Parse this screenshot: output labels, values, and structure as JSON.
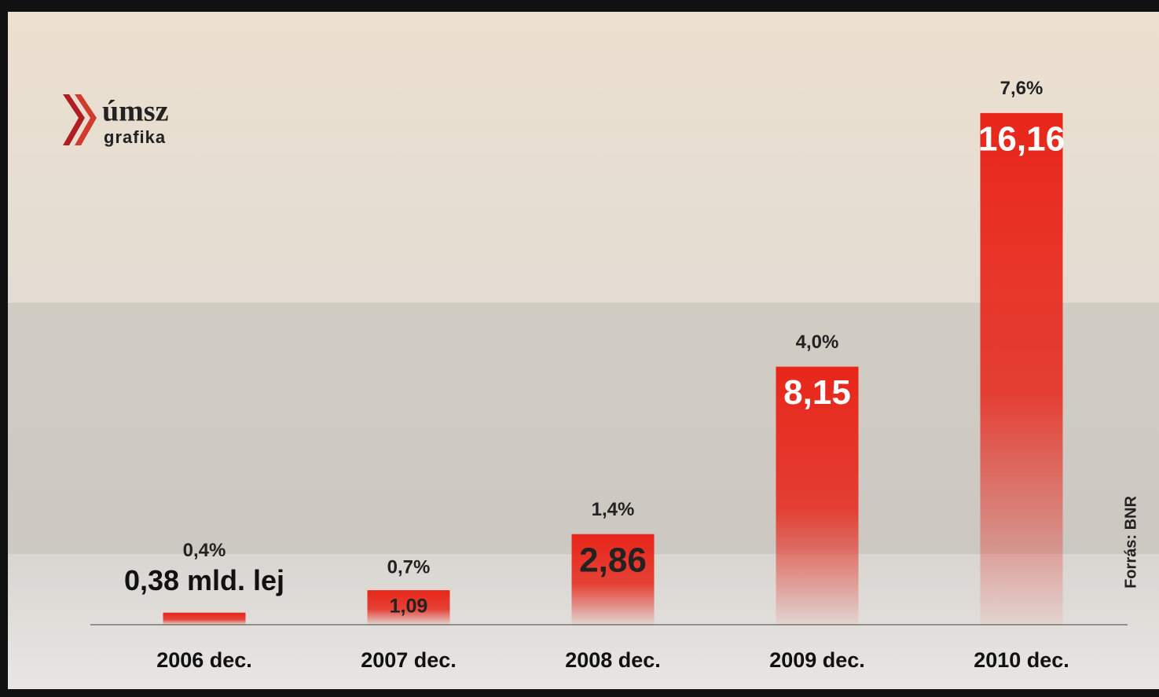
{
  "chart_data": {
    "type": "bar",
    "categories": [
      "2006 dec.",
      "2007 dec.",
      "2008 dec.",
      "2009 dec.",
      "2010 dec."
    ],
    "values": [
      0.38,
      1.09,
      2.86,
      8.15,
      16.16
    ],
    "value_labels": [
      "0,38 mld. lej",
      "1,09",
      "2,86",
      "8,15",
      "16,16"
    ],
    "share_values": [
      0.4,
      0.7,
      1.4,
      4.0,
      7.6
    ],
    "share_labels": [
      "0,4%",
      "0,7%",
      "1,4%",
      "4,0%",
      "7,6%"
    ],
    "color": "#e8261a",
    "ylim": [
      0,
      17
    ],
    "logo": [
      "úmsz",
      "grafika"
    ],
    "source": "Forrás: BNR"
  }
}
